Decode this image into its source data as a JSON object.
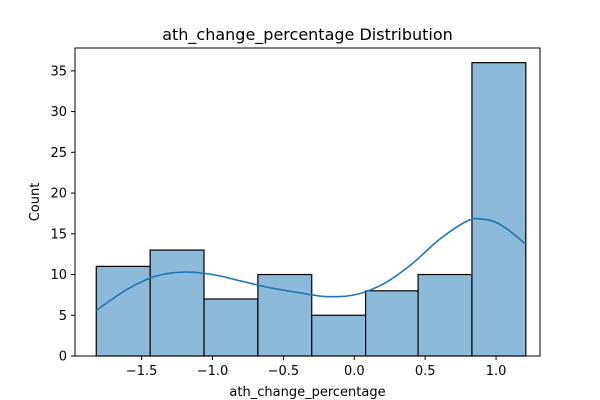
{
  "chart_data": {
    "type": "histogram",
    "title": "ath_change_percentage Distribution",
    "xlabel": "ath_change_percentage",
    "ylabel": "Count",
    "xlim": [
      -1.97,
      1.31
    ],
    "ylim": [
      0,
      37.8
    ],
    "x_ticks": [
      -1.5,
      -1.0,
      -0.5,
      0.0,
      0.5,
      1.0
    ],
    "x_tick_labels": [
      "−1.5",
      "−1.0",
      "−0.5",
      "0.0",
      "0.5",
      "1.0"
    ],
    "y_ticks": [
      0,
      5,
      10,
      15,
      20,
      25,
      30,
      35
    ],
    "y_tick_labels": [
      "0",
      "5",
      "10",
      "15",
      "20",
      "25",
      "30",
      "35"
    ],
    "bins": [
      {
        "x0": -1.82,
        "x1": -1.44,
        "count": 11
      },
      {
        "x0": -1.44,
        "x1": -1.06,
        "count": 13
      },
      {
        "x0": -1.06,
        "x1": -0.68,
        "count": 7
      },
      {
        "x0": -0.68,
        "x1": -0.3,
        "count": 10
      },
      {
        "x0": -0.3,
        "x1": 0.08,
        "count": 5
      },
      {
        "x0": 0.08,
        "x1": 0.45,
        "count": 8
      },
      {
        "x0": 0.45,
        "x1": 0.83,
        "count": 10
      },
      {
        "x0": 0.83,
        "x1": 1.21,
        "count": 36
      }
    ],
    "kde": {
      "x": [
        -1.82,
        -1.6,
        -1.4,
        -1.2,
        -1.0,
        -0.8,
        -0.6,
        -0.4,
        -0.2,
        0.0,
        0.2,
        0.4,
        0.6,
        0.8,
        0.9,
        1.0,
        1.1,
        1.21
      ],
      "y": [
        5.6,
        8.2,
        9.8,
        10.3,
        10.0,
        9.2,
        8.4,
        7.8,
        7.3,
        7.5,
        8.8,
        11.2,
        14.3,
        16.6,
        16.8,
        16.4,
        15.3,
        13.7
      ]
    },
    "grid": false,
    "colors": {
      "bar_fill": "#8ebad9",
      "bar_edge": "#000000",
      "kde_line": "#1f77b4"
    }
  }
}
